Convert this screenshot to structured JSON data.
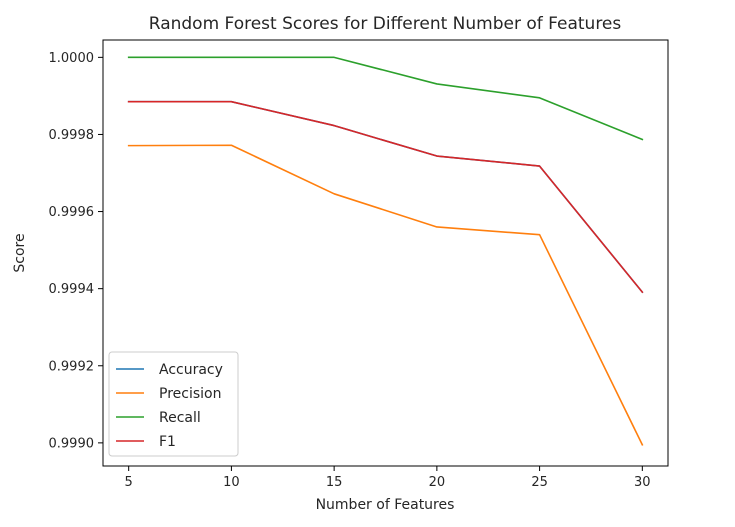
{
  "chart_data": {
    "type": "line",
    "title": "Random Forest Scores for Different Number of Features",
    "xlabel": "Number of Features",
    "ylabel": "Score",
    "x": [
      5,
      10,
      15,
      20,
      25,
      30
    ],
    "xlim": [
      3.75,
      31.25
    ],
    "ylim": [
      0.99894,
      1.000045
    ],
    "xticks": [
      "5",
      "10",
      "15",
      "20",
      "25",
      "30"
    ],
    "yticks": [
      "0.9990",
      "0.9992",
      "0.9994",
      "0.9996",
      "0.9998",
      "1.0000"
    ],
    "grid": false,
    "legend_position": "lower-left",
    "series": [
      {
        "name": "Accuracy",
        "color": "#1f77b4",
        "values": [
          0.999885,
          0.999885,
          0.999823,
          0.999744,
          0.999718,
          0.999391
        ]
      },
      {
        "name": "Precision",
        "color": "#ff7f0e",
        "values": [
          0.999771,
          0.999772,
          0.999646,
          0.99956,
          0.99954,
          0.998995
        ]
      },
      {
        "name": "Recall",
        "color": "#2ca02c",
        "values": [
          1.0,
          1.0,
          1.0,
          0.999931,
          0.999895,
          0.999787
        ]
      },
      {
        "name": "F1",
        "color": "#d62728",
        "values": [
          0.999885,
          0.999885,
          0.999823,
          0.999744,
          0.999718,
          0.999391
        ]
      }
    ]
  }
}
